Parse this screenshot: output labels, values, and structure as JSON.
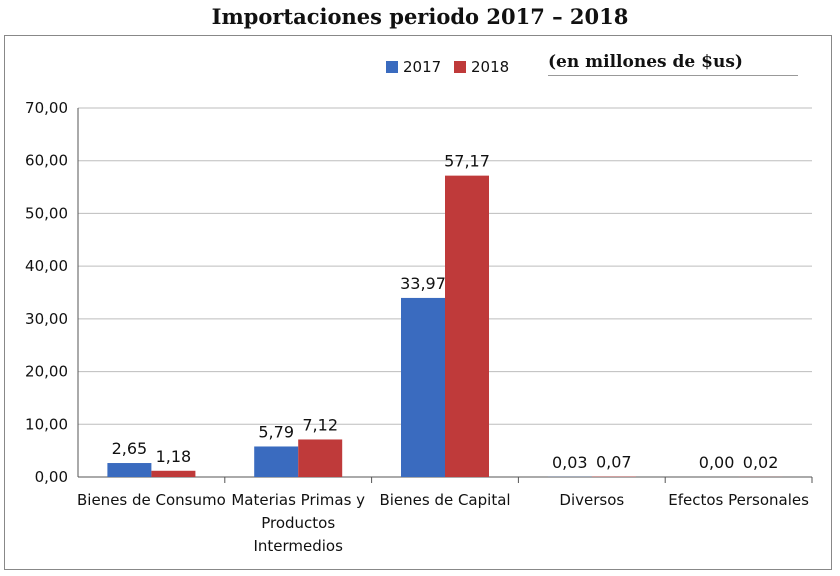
{
  "chart_data": {
    "type": "bar",
    "title": "Importaciones  periodo 2017 – 2018",
    "subtitle": "(en millones de $us)",
    "categories": [
      [
        "Bienes de Consumo"
      ],
      [
        "Materias Primas y",
        "Productos",
        "Intermedios"
      ],
      [
        "Bienes de Capital"
      ],
      [
        "Diversos"
      ],
      [
        "Efectos Personales"
      ]
    ],
    "series": [
      {
        "name": "2017",
        "color": "#3a6bbf",
        "values": [
          2.65,
          5.79,
          33.97,
          0.03,
          0.0
        ],
        "labels": [
          "2,65",
          "5,79",
          "33,97",
          "0,03",
          "0,00"
        ]
      },
      {
        "name": "2018",
        "color": "#bf3a3a",
        "values": [
          1.18,
          7.12,
          57.17,
          0.07,
          0.02
        ],
        "labels": [
          "1,18",
          "7,12",
          "57,17",
          "0,07",
          "0,02"
        ]
      }
    ],
    "ylim": [
      0,
      70
    ],
    "yticks": [
      0,
      10,
      20,
      30,
      40,
      50,
      60,
      70
    ],
    "ytick_labels": [
      "0,00",
      "10,00",
      "20,00",
      "30,00",
      "40,00",
      "50,00",
      "60,00",
      "70,00"
    ],
    "grid": true,
    "legend_position": "top-center"
  }
}
